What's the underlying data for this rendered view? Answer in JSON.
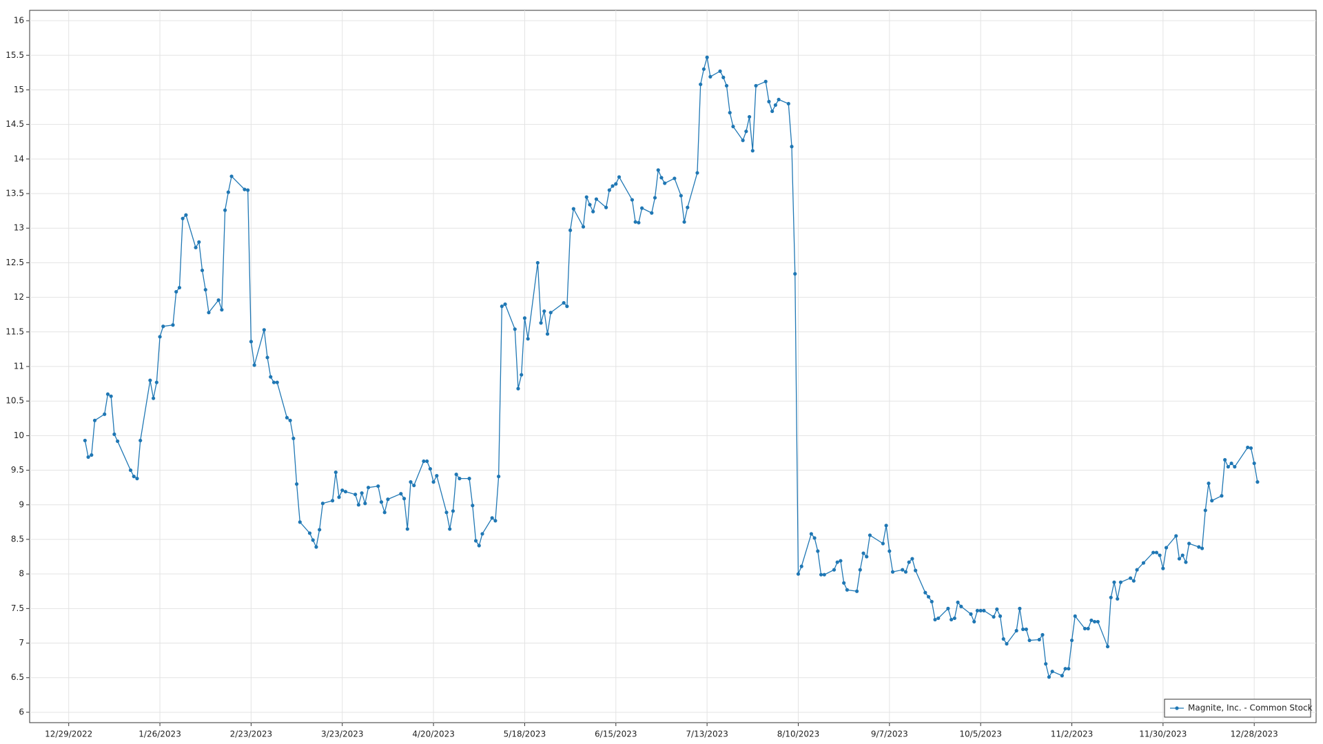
{
  "chart_data": {
    "type": "line",
    "x": [
      "1/3/2023",
      "1/4/2023",
      "1/5/2023",
      "1/6/2023",
      "1/9/2023",
      "1/10/2023",
      "1/11/2023",
      "1/12/2023",
      "1/13/2023",
      "1/17/2023",
      "1/18/2023",
      "1/19/2023",
      "1/20/2023",
      "1/23/2023",
      "1/24/2023",
      "1/25/2023",
      "1/26/2023",
      "1/27/2023",
      "1/30/2023",
      "1/31/2023",
      "2/1/2023",
      "2/2/2023",
      "2/3/2023",
      "2/6/2023",
      "2/7/2023",
      "2/8/2023",
      "2/9/2023",
      "2/10/2023",
      "2/13/2023",
      "2/14/2023",
      "2/15/2023",
      "2/16/2023",
      "2/17/2023",
      "2/21/2023",
      "2/22/2023",
      "2/23/2023",
      "2/24/2023",
      "2/27/2023",
      "2/28/2023",
      "3/1/2023",
      "3/2/2023",
      "3/3/2023",
      "3/6/2023",
      "3/7/2023",
      "3/8/2023",
      "3/9/2023",
      "3/10/2023",
      "3/13/2023",
      "3/14/2023",
      "3/15/2023",
      "3/16/2023",
      "3/17/2023",
      "3/20/2023",
      "3/21/2023",
      "3/22/2023",
      "3/23/2023",
      "3/24/2023",
      "3/27/2023",
      "3/28/2023",
      "3/29/2023",
      "3/30/2023",
      "3/31/2023",
      "4/3/2023",
      "4/4/2023",
      "4/5/2023",
      "4/6/2023",
      "4/10/2023",
      "4/11/2023",
      "4/12/2023",
      "4/13/2023",
      "4/14/2023",
      "4/17/2023",
      "4/18/2023",
      "4/19/2023",
      "4/20/2023",
      "4/21/2023",
      "4/24/2023",
      "4/25/2023",
      "4/26/2023",
      "4/27/2023",
      "4/28/2023",
      "5/1/2023",
      "5/2/2023",
      "5/3/2023",
      "5/4/2023",
      "5/5/2023",
      "5/8/2023",
      "5/9/2023",
      "5/10/2023",
      "5/11/2023",
      "5/12/2023",
      "5/15/2023",
      "5/16/2023",
      "5/17/2023",
      "5/18/2023",
      "5/19/2023",
      "5/22/2023",
      "5/23/2023",
      "5/24/2023",
      "5/25/2023",
      "5/26/2023",
      "5/30/2023",
      "5/31/2023",
      "6/1/2023",
      "6/2/2023",
      "6/5/2023",
      "6/6/2023",
      "6/7/2023",
      "6/8/2023",
      "6/9/2023",
      "6/12/2023",
      "6/13/2023",
      "6/14/2023",
      "6/15/2023",
      "6/16/2023",
      "6/20/2023",
      "6/21/2023",
      "6/22/2023",
      "6/23/2023",
      "6/26/2023",
      "6/27/2023",
      "6/28/2023",
      "6/29/2023",
      "6/30/2023",
      "7/3/2023",
      "7/5/2023",
      "7/6/2023",
      "7/7/2023",
      "7/10/2023",
      "7/11/2023",
      "7/12/2023",
      "7/13/2023",
      "7/14/2023",
      "7/17/2023",
      "7/18/2023",
      "7/19/2023",
      "7/20/2023",
      "7/21/2023",
      "7/24/2023",
      "7/25/2023",
      "7/26/2023",
      "7/27/2023",
      "7/28/2023",
      "7/31/2023",
      "8/1/2023",
      "8/2/2023",
      "8/3/2023",
      "8/4/2023",
      "8/7/2023",
      "8/8/2023",
      "8/9/2023",
      "8/10/2023",
      "8/11/2023",
      "8/14/2023",
      "8/15/2023",
      "8/16/2023",
      "8/17/2023",
      "8/18/2023",
      "8/21/2023",
      "8/22/2023",
      "8/23/2023",
      "8/24/2023",
      "8/25/2023",
      "8/28/2023",
      "8/29/2023",
      "8/30/2023",
      "8/31/2023",
      "9/1/2023",
      "9/5/2023",
      "9/6/2023",
      "9/7/2023",
      "9/8/2023",
      "9/11/2023",
      "9/12/2023",
      "9/13/2023",
      "9/14/2023",
      "9/15/2023",
      "9/18/2023",
      "9/19/2023",
      "9/20/2023",
      "9/21/2023",
      "9/22/2023",
      "9/25/2023",
      "9/26/2023",
      "9/27/2023",
      "9/28/2023",
      "9/29/2023",
      "10/2/2023",
      "10/3/2023",
      "10/4/2023",
      "10/5/2023",
      "10/6/2023",
      "10/9/2023",
      "10/10/2023",
      "10/11/2023",
      "10/12/2023",
      "10/13/2023",
      "10/16/2023",
      "10/17/2023",
      "10/18/2023",
      "10/19/2023",
      "10/20/2023",
      "10/23/2023",
      "10/24/2023",
      "10/25/2023",
      "10/26/2023",
      "10/27/2023",
      "10/30/2023",
      "10/31/2023",
      "11/1/2023",
      "11/2/2023",
      "11/3/2023",
      "11/6/2023",
      "11/7/2023",
      "11/8/2023",
      "11/9/2023",
      "11/10/2023",
      "11/13/2023",
      "11/14/2023",
      "11/15/2023",
      "11/16/2023",
      "11/17/2023",
      "11/20/2023",
      "11/21/2023",
      "11/22/2023",
      "11/24/2023",
      "11/27/2023",
      "11/28/2023",
      "11/29/2023",
      "11/30/2023",
      "12/1/2023",
      "12/4/2023",
      "12/5/2023",
      "12/6/2023",
      "12/7/2023",
      "12/8/2023",
      "12/11/2023",
      "12/12/2023",
      "12/13/2023",
      "12/14/2023",
      "12/15/2023",
      "12/18/2023",
      "12/19/2023",
      "12/20/2023",
      "12/21/2023",
      "12/22/2023",
      "12/26/2023",
      "12/27/2023",
      "12/28/2023",
      "12/29/2023"
    ],
    "series": [
      {
        "name": "Magnite, Inc. - Common Stock",
        "color": "#1f77b4",
        "values": [
          9.93,
          9.69,
          9.72,
          10.22,
          10.31,
          10.6,
          10.57,
          10.02,
          9.92,
          9.5,
          9.41,
          9.38,
          9.93,
          10.8,
          10.54,
          10.77,
          11.43,
          11.58,
          11.6,
          12.08,
          12.14,
          13.14,
          13.19,
          12.72,
          12.8,
          12.39,
          12.11,
          11.78,
          11.96,
          11.82,
          13.26,
          13.52,
          13.75,
          13.56,
          13.55,
          11.36,
          11.02,
          11.53,
          11.13,
          10.85,
          10.77,
          10.77,
          10.26,
          10.22,
          9.96,
          9.3,
          8.75,
          8.59,
          8.49,
          8.39,
          8.64,
          9.02,
          9.06,
          9.47,
          9.11,
          9.21,
          9.19,
          9.15,
          9.0,
          9.17,
          9.02,
          9.25,
          9.27,
          9.04,
          8.89,
          9.08,
          9.16,
          9.09,
          8.65,
          9.33,
          9.28,
          9.63,
          9.63,
          9.52,
          9.33,
          9.42,
          8.89,
          8.65,
          8.91,
          9.44,
          9.38,
          9.38,
          8.99,
          8.48,
          8.41,
          8.58,
          8.81,
          8.77,
          9.41,
          11.87,
          11.9,
          11.54,
          10.68,
          10.88,
          11.7,
          11.4,
          12.5,
          11.63,
          11.8,
          11.47,
          11.78,
          11.92,
          11.87,
          12.97,
          13.28,
          13.02,
          13.45,
          13.34,
          13.24,
          13.42,
          13.3,
          13.55,
          13.61,
          13.64,
          13.74,
          13.41,
          13.09,
          13.08,
          13.29,
          13.22,
          13.44,
          13.84,
          13.73,
          13.65,
          13.72,
          13.47,
          13.09,
          13.3,
          13.8,
          15.08,
          15.3,
          15.47,
          15.19,
          15.27,
          15.18,
          15.06,
          14.67,
          14.47,
          14.27,
          14.4,
          14.61,
          14.12,
          15.06,
          15.12,
          14.83,
          14.69,
          14.78,
          14.86,
          14.8,
          14.18,
          12.34,
          8.0,
          8.11,
          8.58,
          8.52,
          8.33,
          7.99,
          7.99,
          8.06,
          8.17,
          8.19,
          7.87,
          7.77,
          7.75,
          8.06,
          8.3,
          8.25,
          8.56,
          8.44,
          8.7,
          8.33,
          8.03,
          8.06,
          8.03,
          8.17,
          8.22,
          8.05,
          7.73,
          7.67,
          7.6,
          7.34,
          7.36,
          7.5,
          7.34,
          7.36,
          7.59,
          7.53,
          7.42,
          7.31,
          7.47,
          7.47,
          7.47,
          7.38,
          7.49,
          7.39,
          7.06,
          6.99,
          7.18,
          7.5,
          7.2,
          7.2,
          7.04,
          7.05,
          7.12,
          6.7,
          6.51,
          6.59,
          6.53,
          6.63,
          6.63,
          7.04,
          7.39,
          7.21,
          7.21,
          7.33,
          7.31,
          7.31,
          6.95,
          7.66,
          7.88,
          7.64,
          7.88,
          7.94,
          7.9,
          8.06,
          8.16,
          8.31,
          8.31,
          8.27,
          8.08,
          8.38,
          8.55,
          8.22,
          8.27,
          8.17,
          8.44,
          8.39,
          8.37,
          8.92,
          9.31,
          9.06,
          9.13,
          9.65,
          9.55,
          9.6,
          9.55,
          9.83,
          9.82,
          9.6,
          9.33
        ]
      }
    ],
    "xlim": [
      "12/17/2022",
      "1/16/2024"
    ],
    "xticks": [
      "12/29/2022",
      "1/26/2023",
      "2/23/2023",
      "3/23/2023",
      "4/20/2023",
      "5/18/2023",
      "6/15/2023",
      "7/13/2023",
      "8/10/2023",
      "9/7/2023",
      "10/5/2023",
      "11/2/2023",
      "11/30/2023",
      "12/28/2023"
    ],
    "ylim": [
      5.85,
      16.15
    ],
    "yticks": [
      6,
      6.5,
      7,
      7.5,
      8,
      8.5,
      9,
      9.5,
      10,
      10.5,
      11,
      11.5,
      12,
      12.5,
      13,
      13.5,
      14,
      14.5,
      15,
      15.5,
      16
    ],
    "grid": true,
    "legend": "lower right"
  }
}
